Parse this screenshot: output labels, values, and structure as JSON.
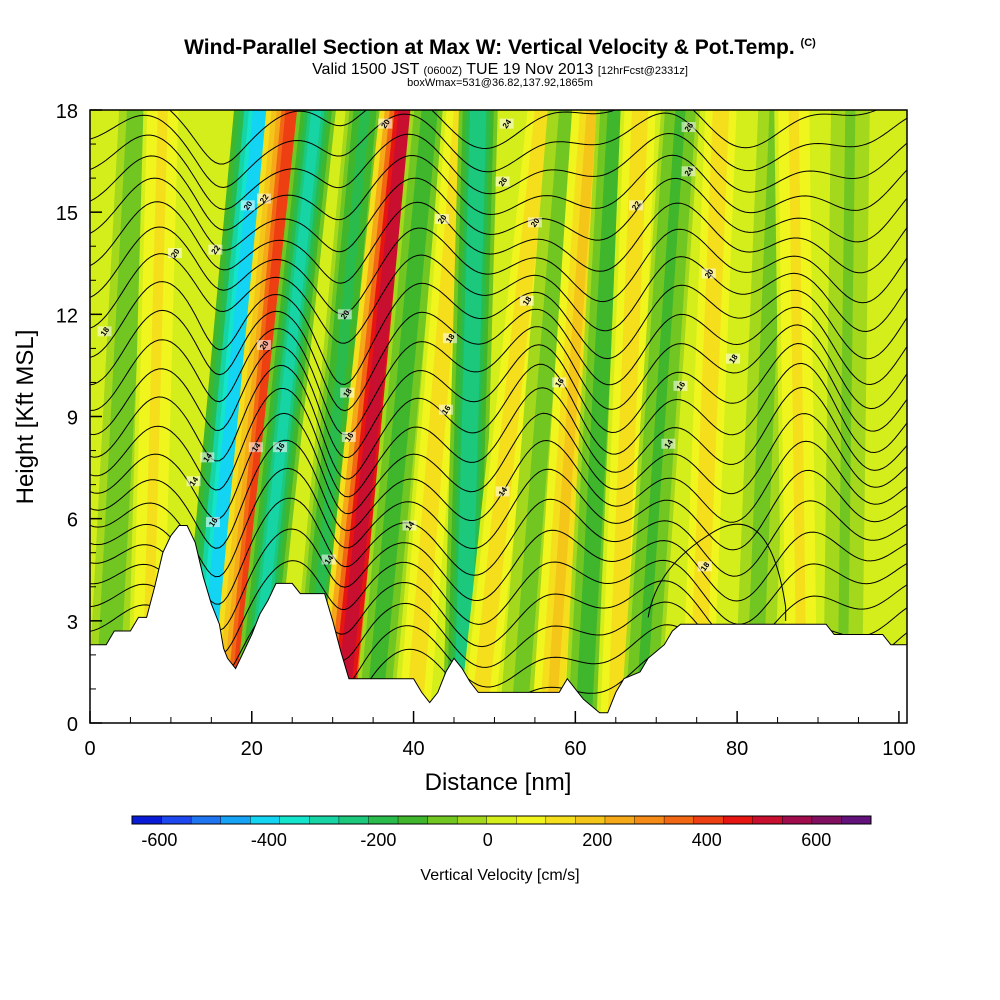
{
  "chart_data": {
    "type": "heatmap",
    "title": "Wind-Parallel Section at Max W: Vertical Velocity & Pot.Temp.",
    "title_mark": "(C)",
    "subtitle_prefix": "Valid 1500 JST",
    "subtitle_small": "(0600Z)",
    "subtitle_main": "TUE 19 Nov 2013",
    "subtitle_small2": "[12hrFcst@2331z]",
    "subtitle2": "boxWmax=531@36.82,137.92,1865m",
    "xlabel": "Distance [nm]",
    "ylabel": "Height [Kft MSL]",
    "xlim": [
      0,
      101
    ],
    "ylim": [
      0,
      18
    ],
    "x_ticks": [
      0,
      20,
      40,
      60,
      80,
      100
    ],
    "y_ticks": [
      0,
      3,
      6,
      9,
      12,
      15,
      18
    ],
    "colorbar": {
      "label": "Vertical Velocity [cm/s]",
      "tick_values": [
        -600,
        -400,
        -200,
        0,
        200,
        400,
        600
      ],
      "tick_labels": [
        "-600",
        "-400",
        "-200",
        "0",
        "200",
        "400",
        "600"
      ],
      "min": -650,
      "max": 700,
      "colors": [
        "#0a1bd8",
        "#1e48ef",
        "#1f74f2",
        "#16a2f5",
        "#13d4f2",
        "#13e4cc",
        "#17d4a4",
        "#1cc87c",
        "#29bc4c",
        "#3fb62c",
        "#72c622",
        "#a4d81c",
        "#d4ee1c",
        "#f0f51e",
        "#f5de1c",
        "#f5c61a",
        "#f5a818",
        "#f58a16",
        "#f26714",
        "#ee3f12",
        "#e61512",
        "#c80f30",
        "#a00c4c",
        "#821060",
        "#62127a"
      ]
    },
    "vertical_velocity_bands": [
      {
        "x_bottom": 2,
        "x_top": 6,
        "w": -90
      },
      {
        "x_bottom": 7,
        "x_top": 9,
        "w": 110
      },
      {
        "x_bottom": 14,
        "x_top": 21,
        "w": -430
      },
      {
        "x_bottom": 18,
        "x_top": 25,
        "w": 380
      },
      {
        "x_bottom": 20,
        "x_top": 28,
        "w": -300
      },
      {
        "x_bottom": 27,
        "x_top": 34,
        "w": -180
      },
      {
        "x_bottom": 31,
        "x_top": 39,
        "w": 520
      },
      {
        "x_bottom": 35,
        "x_top": 42,
        "w": -150
      },
      {
        "x_bottom": 40,
        "x_top": 46,
        "w": 140
      },
      {
        "x_bottom": 46,
        "x_top": 48,
        "w": -260
      },
      {
        "x_bottom": 48,
        "x_top": 56,
        "w": 150
      },
      {
        "x_bottom": 53,
        "x_top": 59,
        "w": -80
      },
      {
        "x_bottom": 57,
        "x_top": 62,
        "w": 180
      },
      {
        "x_bottom": 61,
        "x_top": 65,
        "w": -140
      },
      {
        "x_bottom": 65,
        "x_top": 68,
        "w": 150
      },
      {
        "x_bottom": 68,
        "x_top": 73,
        "w": -120
      },
      {
        "x_bottom": 75,
        "x_top": 78,
        "w": 150
      },
      {
        "x_bottom": 82,
        "x_top": 85,
        "w": -70
      },
      {
        "x_bottom": 88,
        "x_top": 87,
        "w": 110
      },
      {
        "x_bottom": 93,
        "x_top": 94,
        "w": -60
      }
    ],
    "terrain_kft": [
      [
        0,
        2.3
      ],
      [
        2,
        2.3
      ],
      [
        3,
        2.7
      ],
      [
        5,
        2.7
      ],
      [
        6,
        3.1
      ],
      [
        7,
        3.1
      ],
      [
        8,
        4.0
      ],
      [
        9,
        5.0
      ],
      [
        10,
        5.5
      ],
      [
        11,
        5.8
      ],
      [
        12,
        5.8
      ],
      [
        13,
        5.3
      ],
      [
        14,
        4.3
      ],
      [
        15,
        3.5
      ],
      [
        16,
        2.9
      ],
      [
        16.5,
        2.2
      ],
      [
        17,
        1.9
      ],
      [
        18,
        1.6
      ],
      [
        19,
        2.1
      ],
      [
        20,
        2.6
      ],
      [
        21,
        3.2
      ],
      [
        22,
        3.6
      ],
      [
        23,
        4.1
      ],
      [
        25,
        4.1
      ],
      [
        26,
        3.8
      ],
      [
        29,
        3.8
      ],
      [
        30,
        3.0
      ],
      [
        31,
        2.1
      ],
      [
        32,
        1.3
      ],
      [
        40,
        1.3
      ],
      [
        41,
        0.9
      ],
      [
        42,
        0.6
      ],
      [
        43,
        0.9
      ],
      [
        44,
        1.5
      ],
      [
        45,
        1.9
      ],
      [
        46,
        1.6
      ],
      [
        47,
        1.2
      ],
      [
        48,
        0.9
      ],
      [
        50,
        0.9
      ],
      [
        58,
        0.9
      ],
      [
        59,
        1.3
      ],
      [
        60,
        1.0
      ],
      [
        61,
        0.7
      ],
      [
        62,
        0.5
      ],
      [
        63,
        0.3
      ],
      [
        64,
        0.3
      ],
      [
        65,
        0.9
      ],
      [
        66,
        1.3
      ],
      [
        68,
        1.5
      ],
      [
        69,
        1.9
      ],
      [
        70,
        2.1
      ],
      [
        71,
        2.3
      ],
      [
        72,
        2.7
      ],
      [
        73,
        2.9
      ],
      [
        91,
        2.9
      ],
      [
        92,
        2.6
      ],
      [
        98,
        2.6
      ],
      [
        99,
        2.3
      ],
      [
        101,
        2.3
      ]
    ],
    "theta_contour_labels": [
      {
        "x": 1.8,
        "y": 11.5,
        "text": "18"
      },
      {
        "x": 10.5,
        "y": 13.8,
        "text": "20"
      },
      {
        "x": 15.5,
        "y": 13.9,
        "text": "22"
      },
      {
        "x": 19.5,
        "y": 15.2,
        "text": "20"
      },
      {
        "x": 21.5,
        "y": 15.4,
        "text": "22"
      },
      {
        "x": 21.5,
        "y": 11.1,
        "text": "20"
      },
      {
        "x": 14.5,
        "y": 7.8,
        "text": "14"
      },
      {
        "x": 12.8,
        "y": 7.1,
        "text": "14"
      },
      {
        "x": 15.2,
        "y": 5.9,
        "text": "16"
      },
      {
        "x": 20.5,
        "y": 8.1,
        "text": "14"
      },
      {
        "x": 23.5,
        "y": 8.1,
        "text": "16"
      },
      {
        "x": 31.5,
        "y": 12.0,
        "text": "20"
      },
      {
        "x": 31.8,
        "y": 9.7,
        "text": "18"
      },
      {
        "x": 32.0,
        "y": 8.4,
        "text": "16"
      },
      {
        "x": 29.5,
        "y": 4.8,
        "text": "14"
      },
      {
        "x": 36.5,
        "y": 17.6,
        "text": "20"
      },
      {
        "x": 43.5,
        "y": 14.8,
        "text": "20"
      },
      {
        "x": 44.5,
        "y": 11.3,
        "text": "18"
      },
      {
        "x": 44.0,
        "y": 9.2,
        "text": "16"
      },
      {
        "x": 39.5,
        "y": 5.8,
        "text": "14"
      },
      {
        "x": 51.5,
        "y": 17.6,
        "text": "24"
      },
      {
        "x": 51.0,
        "y": 15.9,
        "text": "26"
      },
      {
        "x": 55.0,
        "y": 14.7,
        "text": "20"
      },
      {
        "x": 54.0,
        "y": 12.4,
        "text": "18"
      },
      {
        "x": 58.0,
        "y": 10.0,
        "text": "16"
      },
      {
        "x": 51.0,
        "y": 6.8,
        "text": "14"
      },
      {
        "x": 74.0,
        "y": 17.5,
        "text": "26"
      },
      {
        "x": 74.0,
        "y": 16.2,
        "text": "24"
      },
      {
        "x": 67.5,
        "y": 15.2,
        "text": "22"
      },
      {
        "x": 76.5,
        "y": 13.2,
        "text": "20"
      },
      {
        "x": 79.5,
        "y": 10.7,
        "text": "18"
      },
      {
        "x": 73.0,
        "y": 9.9,
        "text": "16"
      },
      {
        "x": 71.5,
        "y": 8.2,
        "text": "14"
      },
      {
        "x": 76.0,
        "y": 4.6,
        "text": "18"
      }
    ]
  }
}
